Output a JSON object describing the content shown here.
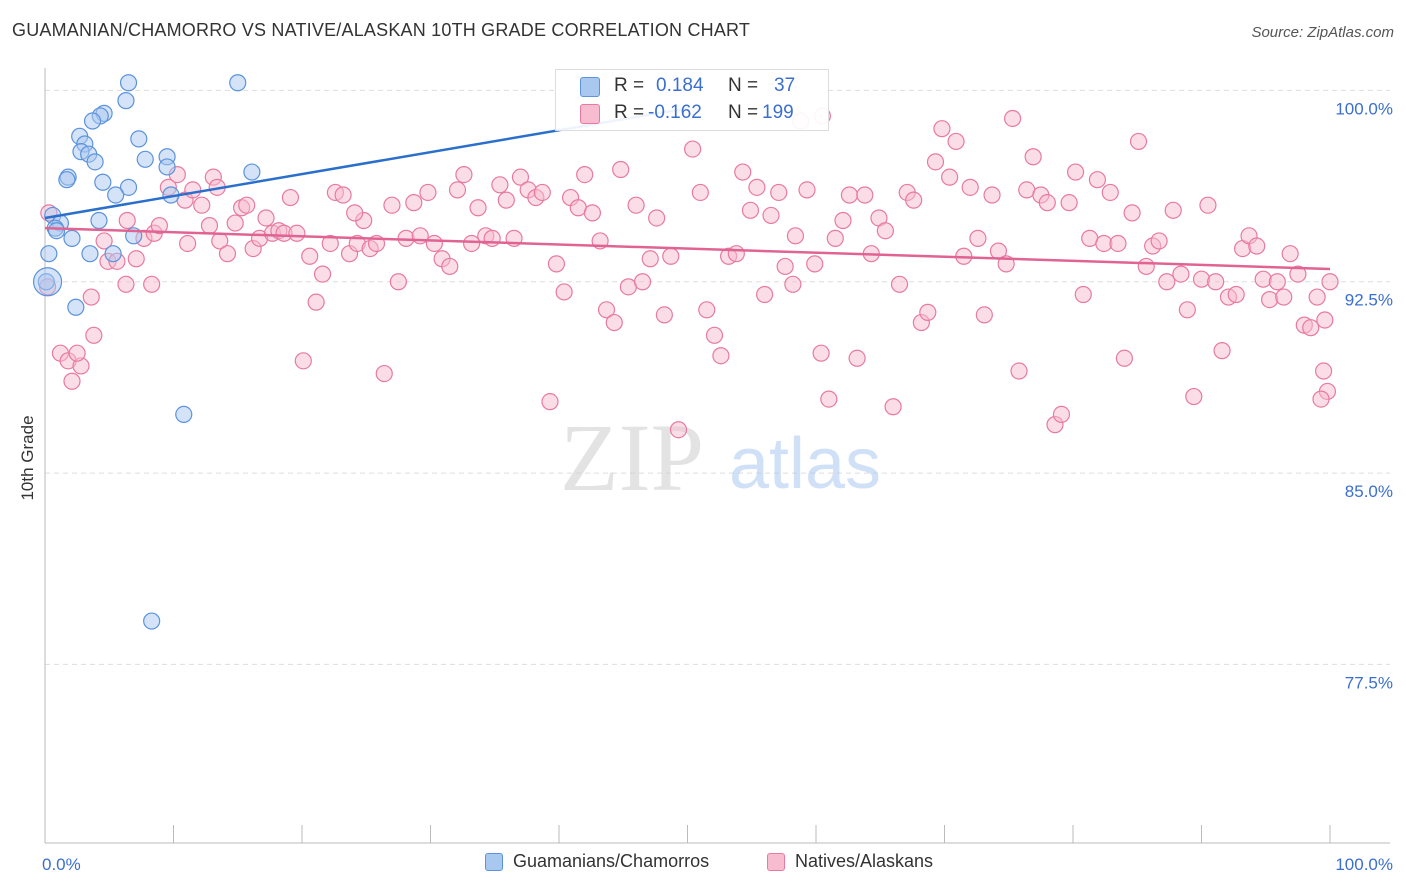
{
  "title": "GUAMANIAN/CHAMORRO VS NATIVE/ALASKAN 10TH GRADE CORRELATION CHART",
  "source": "Source: ZipAtlas.com",
  "watermark": {
    "zip": "ZIP",
    "atlas": "atlas"
  },
  "stats": [
    {
      "r_label": "R =",
      "r_value": "0.184",
      "n_label": "N =",
      "n_value": "37"
    },
    {
      "r_label": "R =",
      "r_value": "-0.162",
      "n_label": "N =",
      "n_value": "199"
    }
  ],
  "legend": [
    {
      "label": "Guamanians/Chamorros"
    },
    {
      "label": "Natives/Alaskans"
    }
  ],
  "colors": {
    "blue_fill": "#a9c8f0",
    "blue_stroke": "#5b93dc",
    "blue_line": "#2a6fcc",
    "pink_fill": "#f7bcd0",
    "pink_stroke": "#e87aa0",
    "pink_line": "#e06391",
    "tick_label": "#3b6fcf",
    "grid": "#dddddd"
  },
  "chart_data": {
    "type": "scatter",
    "title": "GUAMANIAN/CHAMORRO VS NATIVE/ALASKAN 10TH GRADE CORRELATION CHART",
    "xlabel": "",
    "ylabel": "10th Grade",
    "xlim": [
      0,
      100
    ],
    "ylim": [
      70.5,
      100.8
    ],
    "x_tick_labels": [
      "0.0%",
      "100.0%"
    ],
    "y_ticks": [
      {
        "value": 100.0,
        "label": "100.0%"
      },
      {
        "value": 92.5,
        "label": "92.5%"
      },
      {
        "value": 85.0,
        "label": "85.0%"
      },
      {
        "value": 77.5,
        "label": "77.5%"
      }
    ],
    "grid": true,
    "series": [
      {
        "name": "Guamanians/Chamorros",
        "trend": {
          "x": [
            0,
            50
          ],
          "y": [
            95.0,
            99.3
          ]
        },
        "points": [
          [
            6.5,
            100.3
          ],
          [
            15,
            100.3
          ],
          [
            6.3,
            99.6
          ],
          [
            4.6,
            99.1
          ],
          [
            4.3,
            99.0
          ],
          [
            3.7,
            98.8
          ],
          [
            2.7,
            98.2
          ],
          [
            7.3,
            98.1
          ],
          [
            3.1,
            97.9
          ],
          [
            2.8,
            97.6
          ],
          [
            3.4,
            97.5
          ],
          [
            7.8,
            97.3
          ],
          [
            9.5,
            97.4
          ],
          [
            3.9,
            97.2
          ],
          [
            9.5,
            97.0
          ],
          [
            16.1,
            96.8
          ],
          [
            1.8,
            96.6
          ],
          [
            1.7,
            96.5
          ],
          [
            4.5,
            96.4
          ],
          [
            6.5,
            96.2
          ],
          [
            5.5,
            95.9
          ],
          [
            9.8,
            95.9
          ],
          [
            0.6,
            95.1
          ],
          [
            1.2,
            94.8
          ],
          [
            0.8,
            94.6
          ],
          [
            0.9,
            94.5
          ],
          [
            2.1,
            94.2
          ],
          [
            4.2,
            94.9
          ],
          [
            6.9,
            94.3
          ],
          [
            0.3,
            93.6
          ],
          [
            3.5,
            93.6
          ],
          [
            5.3,
            93.6
          ],
          [
            0.1,
            92.5
          ],
          [
            2.4,
            91.5
          ],
          [
            10.8,
            87.3
          ],
          [
            8.3,
            79.2
          ],
          [
            0.2,
            92.5
          ]
        ]
      },
      {
        "name": "Natives/Alaskans",
        "trend": {
          "x": [
            0,
            100
          ],
          "y": [
            94.6,
            93.0
          ]
        },
        "points": [
          [
            0.3,
            95.2
          ],
          [
            0.2,
            92.3
          ],
          [
            1.2,
            89.7
          ],
          [
            1.8,
            89.4
          ],
          [
            2.1,
            88.6
          ],
          [
            2.8,
            89.2
          ],
          [
            3.6,
            91.9
          ],
          [
            3.8,
            90.4
          ],
          [
            4.6,
            94.1
          ],
          [
            4.9,
            93.3
          ],
          [
            5.6,
            93.3
          ],
          [
            6.3,
            92.4
          ],
          [
            6.4,
            94.9
          ],
          [
            7.1,
            93.4
          ],
          [
            7.7,
            94.2
          ],
          [
            8.3,
            92.4
          ],
          [
            8.5,
            94.4
          ],
          [
            8.9,
            94.7
          ],
          [
            9.6,
            96.2
          ],
          [
            10.3,
            96.7
          ],
          [
            10.9,
            95.7
          ],
          [
            11.1,
            94.0
          ],
          [
            11.5,
            96.1
          ],
          [
            12.2,
            95.5
          ],
          [
            12.8,
            94.7
          ],
          [
            13.1,
            96.6
          ],
          [
            13.6,
            94.1
          ],
          [
            14.2,
            93.6
          ],
          [
            14.8,
            94.8
          ],
          [
            15.3,
            95.4
          ],
          [
            15.7,
            95.5
          ],
          [
            16.2,
            93.8
          ],
          [
            16.7,
            94.2
          ],
          [
            17.2,
            95.0
          ],
          [
            17.7,
            94.4
          ],
          [
            18.2,
            94.5
          ],
          [
            18.6,
            94.4
          ],
          [
            19.1,
            95.8
          ],
          [
            19.6,
            94.4
          ],
          [
            20.1,
            89.4
          ],
          [
            20.6,
            93.5
          ],
          [
            21.1,
            91.7
          ],
          [
            21.6,
            92.8
          ],
          [
            22.2,
            94.0
          ],
          [
            22.6,
            96.0
          ],
          [
            23.2,
            95.9
          ],
          [
            23.7,
            93.6
          ],
          [
            24.3,
            94.0
          ],
          [
            24.8,
            94.9
          ],
          [
            25.3,
            93.8
          ],
          [
            25.8,
            94.0
          ],
          [
            26.4,
            88.9
          ],
          [
            27.0,
            95.5
          ],
          [
            27.5,
            92.5
          ],
          [
            28.1,
            94.2
          ],
          [
            28.7,
            95.6
          ],
          [
            29.2,
            94.3
          ],
          [
            29.8,
            96.0
          ],
          [
            30.3,
            94.0
          ],
          [
            30.9,
            93.4
          ],
          [
            31.5,
            93.1
          ],
          [
            32.1,
            96.1
          ],
          [
            32.6,
            96.7
          ],
          [
            33.2,
            94.0
          ],
          [
            33.7,
            95.4
          ],
          [
            34.3,
            94.3
          ],
          [
            34.8,
            94.2
          ],
          [
            35.4,
            96.3
          ],
          [
            35.9,
            95.7
          ],
          [
            36.5,
            94.2
          ],
          [
            37.0,
            96.6
          ],
          [
            37.6,
            96.1
          ],
          [
            38.2,
            95.8
          ],
          [
            38.7,
            96.0
          ],
          [
            39.3,
            87.8
          ],
          [
            39.8,
            93.2
          ],
          [
            40.4,
            92.1
          ],
          [
            40.9,
            95.8
          ],
          [
            41.5,
            95.4
          ],
          [
            42.0,
            96.7
          ],
          [
            42.6,
            95.2
          ],
          [
            43.2,
            94.1
          ],
          [
            43.7,
            91.4
          ],
          [
            44.3,
            90.9
          ],
          [
            44.8,
            96.9
          ],
          [
            45.4,
            92.3
          ],
          [
            46.0,
            95.5
          ],
          [
            46.5,
            92.5
          ],
          [
            47.1,
            93.4
          ],
          [
            47.6,
            95.0
          ],
          [
            48.2,
            91.2
          ],
          [
            48.7,
            93.5
          ],
          [
            49.3,
            86.7
          ],
          [
            50.4,
            97.7
          ],
          [
            51.0,
            96.0
          ],
          [
            51.5,
            91.4
          ],
          [
            52.1,
            90.4
          ],
          [
            52.6,
            89.6
          ],
          [
            53.2,
            93.5
          ],
          [
            53.8,
            93.6
          ],
          [
            54.3,
            96.8
          ],
          [
            54.9,
            95.3
          ],
          [
            55.4,
            96.2
          ],
          [
            56.0,
            92.0
          ],
          [
            56.5,
            95.1
          ],
          [
            57.1,
            96.0
          ],
          [
            57.6,
            93.1
          ],
          [
            58.2,
            92.4
          ],
          [
            58.8,
            98.8
          ],
          [
            59.3,
            96.1
          ],
          [
            59.9,
            93.2
          ],
          [
            60.4,
            89.7
          ],
          [
            61.0,
            87.9
          ],
          [
            61.5,
            94.2
          ],
          [
            62.1,
            94.9
          ],
          [
            62.6,
            95.9
          ],
          [
            63.2,
            89.5
          ],
          [
            63.8,
            95.9
          ],
          [
            64.3,
            93.6
          ],
          [
            64.9,
            95.0
          ],
          [
            65.4,
            94.5
          ],
          [
            66.0,
            87.6
          ],
          [
            66.5,
            92.4
          ],
          [
            67.1,
            96.0
          ],
          [
            67.6,
            95.7
          ],
          [
            68.2,
            90.9
          ],
          [
            68.7,
            91.3
          ],
          [
            69.3,
            97.2
          ],
          [
            69.8,
            98.5
          ],
          [
            70.4,
            96.6
          ],
          [
            70.9,
            98.0
          ],
          [
            71.5,
            93.5
          ],
          [
            72.0,
            96.2
          ],
          [
            72.6,
            94.2
          ],
          [
            73.1,
            91.2
          ],
          [
            73.7,
            95.9
          ],
          [
            74.2,
            93.7
          ],
          [
            74.8,
            93.2
          ],
          [
            75.3,
            98.9
          ],
          [
            75.8,
            89.0
          ],
          [
            76.4,
            96.1
          ],
          [
            76.9,
            97.4
          ],
          [
            77.5,
            95.9
          ],
          [
            78.0,
            95.6
          ],
          [
            78.6,
            86.9
          ],
          [
            79.1,
            87.3
          ],
          [
            79.7,
            95.6
          ],
          [
            80.2,
            96.8
          ],
          [
            80.8,
            92.0
          ],
          [
            81.3,
            94.2
          ],
          [
            81.9,
            96.5
          ],
          [
            82.4,
            94.0
          ],
          [
            82.9,
            96.0
          ],
          [
            83.5,
            94.0
          ],
          [
            84.0,
            89.5
          ],
          [
            84.6,
            95.2
          ],
          [
            85.1,
            98.0
          ],
          [
            85.7,
            93.1
          ],
          [
            86.2,
            93.9
          ],
          [
            86.7,
            94.1
          ],
          [
            87.3,
            92.5
          ],
          [
            87.8,
            95.3
          ],
          [
            88.4,
            92.8
          ],
          [
            88.9,
            91.4
          ],
          [
            89.4,
            88.0
          ],
          [
            90.0,
            92.6
          ],
          [
            90.5,
            95.5
          ],
          [
            91.1,
            92.5
          ],
          [
            91.6,
            89.8
          ],
          [
            92.1,
            91.9
          ],
          [
            92.7,
            92.0
          ],
          [
            93.2,
            93.8
          ],
          [
            93.7,
            94.3
          ],
          [
            94.3,
            93.9
          ],
          [
            94.8,
            92.6
          ],
          [
            95.3,
            91.8
          ],
          [
            95.9,
            92.5
          ],
          [
            96.4,
            91.9
          ],
          [
            96.9,
            93.6
          ],
          [
            97.5,
            92.8
          ],
          [
            98.0,
            90.8
          ],
          [
            98.5,
            90.7
          ],
          [
            99.0,
            91.9
          ],
          [
            99.5,
            89.0
          ],
          [
            99.8,
            88.2
          ],
          [
            100.0,
            92.5
          ],
          [
            99.3,
            87.9
          ],
          [
            99.6,
            91.0
          ],
          [
            2.5,
            89.7
          ],
          [
            60.5,
            99.0
          ],
          [
            13.4,
            96.2
          ],
          [
            24.1,
            95.2
          ],
          [
            58.4,
            94.3
          ]
        ]
      }
    ]
  }
}
